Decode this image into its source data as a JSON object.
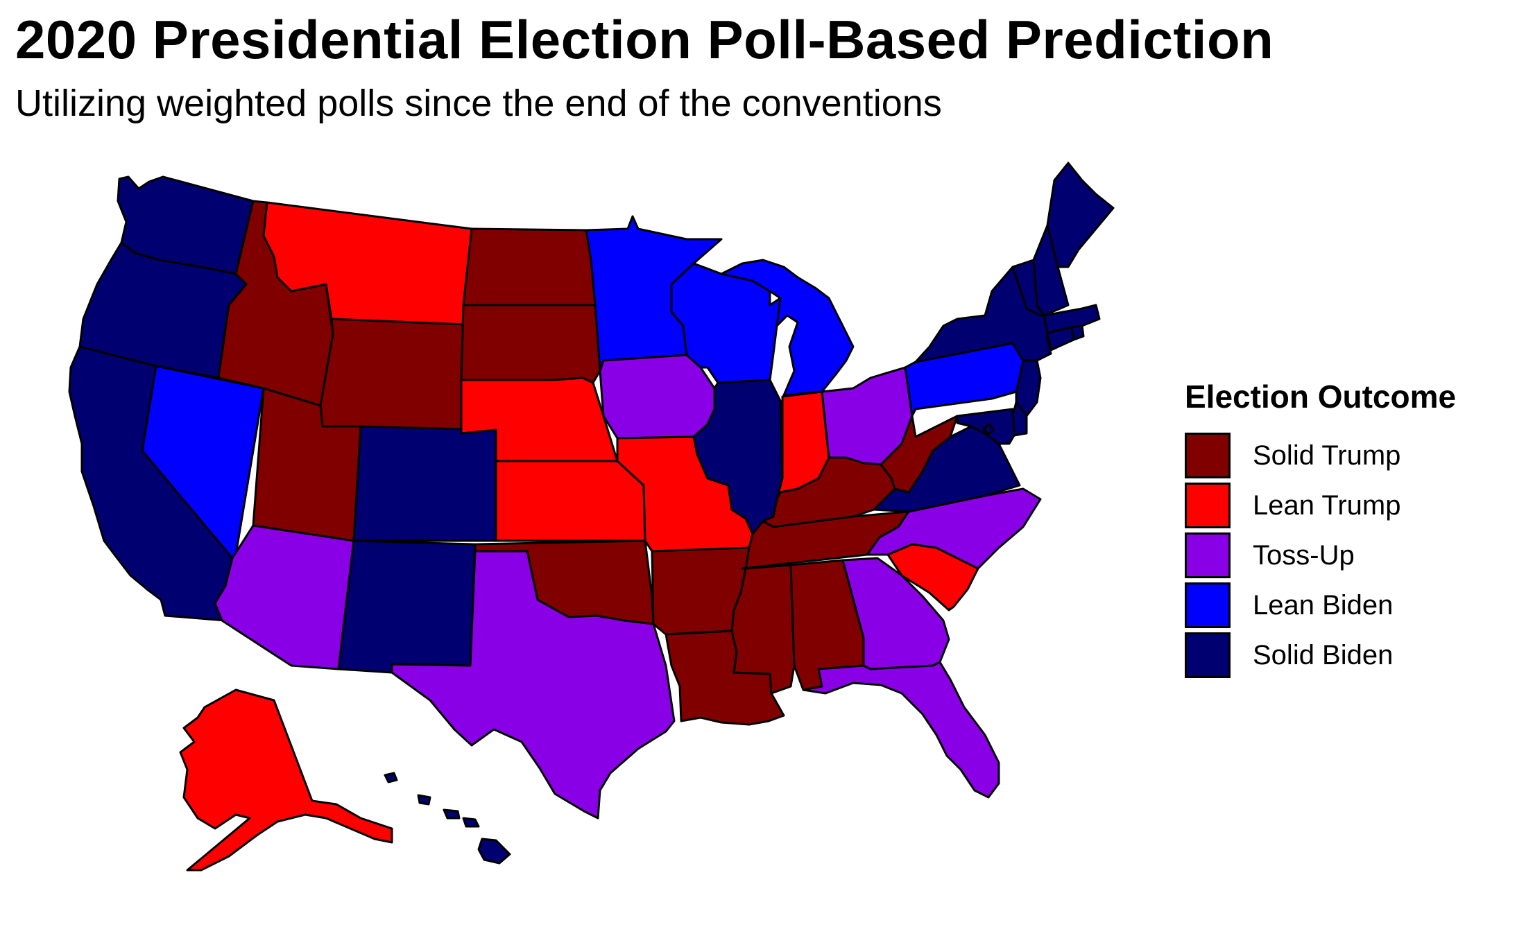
{
  "title": "2020 Presidential Election Poll-Based Prediction",
  "subtitle": "Utilizing weighted polls since the end of the conventions",
  "legend": {
    "title": "Election Outcome",
    "items": [
      {
        "key": "solid_trump",
        "label": "Solid Trump",
        "color": "#800000"
      },
      {
        "key": "lean_trump",
        "label": "Lean Trump",
        "color": "#ff0000"
      },
      {
        "key": "toss_up",
        "label": "Toss-Up",
        "color": "#8a00e6"
      },
      {
        "key": "lean_biden",
        "label": "Lean Biden",
        "color": "#0000ff"
      },
      {
        "key": "solid_biden",
        "label": "Solid Biden",
        "color": "#000070"
      }
    ]
  },
  "states": [
    {
      "id": "WA",
      "outcome": "solid_biden"
    },
    {
      "id": "OR",
      "outcome": "solid_biden"
    },
    {
      "id": "CA",
      "outcome": "solid_biden"
    },
    {
      "id": "NV",
      "outcome": "lean_biden"
    },
    {
      "id": "ID",
      "outcome": "solid_trump"
    },
    {
      "id": "MT",
      "outcome": "lean_trump"
    },
    {
      "id": "WY",
      "outcome": "solid_trump"
    },
    {
      "id": "UT",
      "outcome": "solid_trump"
    },
    {
      "id": "AZ",
      "outcome": "toss_up"
    },
    {
      "id": "CO",
      "outcome": "solid_biden"
    },
    {
      "id": "NM",
      "outcome": "solid_biden"
    },
    {
      "id": "ND",
      "outcome": "solid_trump"
    },
    {
      "id": "SD",
      "outcome": "solid_trump"
    },
    {
      "id": "NE",
      "outcome": "lean_trump"
    },
    {
      "id": "KS",
      "outcome": "lean_trump"
    },
    {
      "id": "OK",
      "outcome": "solid_trump"
    },
    {
      "id": "TX",
      "outcome": "toss_up"
    },
    {
      "id": "MN",
      "outcome": "lean_biden"
    },
    {
      "id": "IA",
      "outcome": "toss_up"
    },
    {
      "id": "MO",
      "outcome": "lean_trump"
    },
    {
      "id": "AR",
      "outcome": "solid_trump"
    },
    {
      "id": "LA",
      "outcome": "solid_trump"
    },
    {
      "id": "WI",
      "outcome": "lean_biden"
    },
    {
      "id": "IL",
      "outcome": "solid_biden"
    },
    {
      "id": "MI",
      "outcome": "lean_biden"
    },
    {
      "id": "IN",
      "outcome": "lean_trump"
    },
    {
      "id": "OH",
      "outcome": "toss_up"
    },
    {
      "id": "KY",
      "outcome": "solid_trump"
    },
    {
      "id": "TN",
      "outcome": "solid_trump"
    },
    {
      "id": "MS",
      "outcome": "solid_trump"
    },
    {
      "id": "AL",
      "outcome": "solid_trump"
    },
    {
      "id": "GA",
      "outcome": "toss_up"
    },
    {
      "id": "FL",
      "outcome": "toss_up"
    },
    {
      "id": "SC",
      "outcome": "lean_trump"
    },
    {
      "id": "NC",
      "outcome": "toss_up"
    },
    {
      "id": "VA",
      "outcome": "solid_biden"
    },
    {
      "id": "WV",
      "outcome": "solid_trump"
    },
    {
      "id": "PA",
      "outcome": "lean_biden"
    },
    {
      "id": "NY",
      "outcome": "solid_biden"
    },
    {
      "id": "NJ",
      "outcome": "solid_biden"
    },
    {
      "id": "DE",
      "outcome": "solid_biden"
    },
    {
      "id": "MD",
      "outcome": "solid_biden"
    },
    {
      "id": "DC",
      "outcome": "solid_biden"
    },
    {
      "id": "CT",
      "outcome": "solid_biden"
    },
    {
      "id": "RI",
      "outcome": "solid_biden"
    },
    {
      "id": "MA",
      "outcome": "solid_biden"
    },
    {
      "id": "VT",
      "outcome": "solid_biden"
    },
    {
      "id": "NH",
      "outcome": "solid_biden"
    },
    {
      "id": "ME",
      "outcome": "solid_biden"
    },
    {
      "id": "AK",
      "outcome": "lean_trump"
    },
    {
      "id": "HI",
      "outcome": "solid_biden"
    }
  ]
}
